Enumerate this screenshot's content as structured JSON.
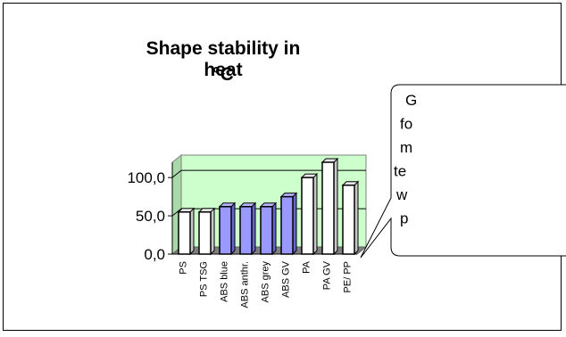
{
  "chart_data": {
    "type": "bar",
    "title": "Shape stability in heat",
    "subtitle": "°C",
    "categories": [
      "PS",
      "PS TSG",
      "ABS blue",
      "ABS anthr.",
      "ABS grey",
      "ABS GV",
      "PA",
      "PA GV",
      "PE/ PP"
    ],
    "values": [
      55,
      55,
      62,
      62,
      62,
      75,
      100,
      120,
      90
    ],
    "bar_colors": [
      "#ffffff",
      "#ffffff",
      "#9999ff",
      "#9999ff",
      "#9999ff",
      "#9999ff",
      "#ffffff",
      "#ffffff",
      "#ffffff"
    ],
    "yticks": [
      "0,0",
      "50,0",
      "100,0"
    ],
    "ylim": [
      0,
      120
    ],
    "grid": true,
    "plot_background": "#ccffcc"
  },
  "callout": {
    "lines": [
      "G",
      "fo",
      "m",
      "te",
      "w",
      "p"
    ]
  }
}
